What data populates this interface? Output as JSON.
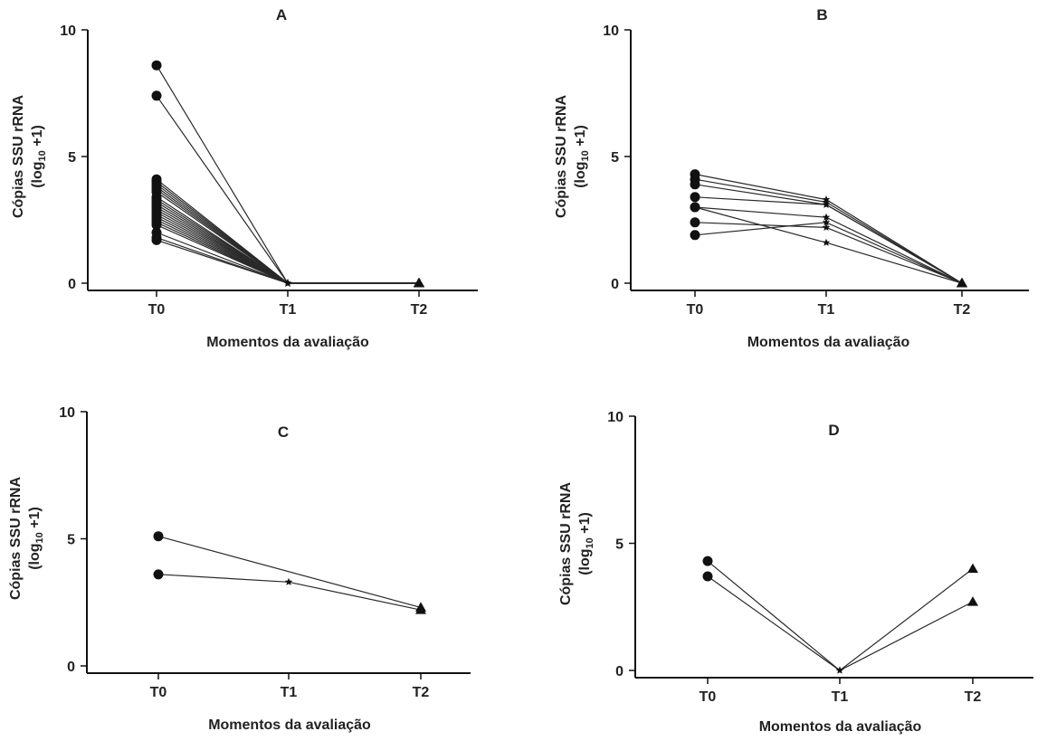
{
  "chart_data": [
    {
      "type": "line",
      "title": "A",
      "xlabel": "Momentos da avaliação",
      "ylabel": "Cópias SSU rRNA",
      "ylabel_line2": {
        "prefix": "(log",
        "sub": "10",
        "suffix": " +1)"
      },
      "categories": [
        "T0",
        "T1",
        "T2"
      ],
      "ylim": [
        0,
        10
      ],
      "yticks": [
        "0",
        "5",
        "10"
      ],
      "markers": [
        "circle",
        "star",
        "triangle"
      ],
      "series": [
        {
          "values": [
            8.6,
            0,
            0
          ]
        },
        {
          "values": [
            7.4,
            0,
            0
          ]
        },
        {
          "values": [
            4.1,
            0,
            0
          ]
        },
        {
          "values": [
            4.0,
            0,
            0
          ]
        },
        {
          "values": [
            3.9,
            0,
            0
          ]
        },
        {
          "values": [
            3.8,
            0,
            0
          ]
        },
        {
          "values": [
            3.7,
            0,
            0
          ]
        },
        {
          "values": [
            3.6,
            0,
            0
          ]
        },
        {
          "values": [
            3.4,
            0,
            0
          ]
        },
        {
          "values": [
            3.3,
            0,
            0
          ]
        },
        {
          "values": [
            3.2,
            0,
            0
          ]
        },
        {
          "values": [
            3.1,
            0,
            0
          ]
        },
        {
          "values": [
            3.0,
            0,
            0
          ]
        },
        {
          "values": [
            2.9,
            0,
            0
          ]
        },
        {
          "values": [
            2.8,
            0,
            0
          ]
        },
        {
          "values": [
            2.7,
            0,
            0
          ]
        },
        {
          "values": [
            2.6,
            0,
            0
          ]
        },
        {
          "values": [
            2.5,
            0,
            0
          ]
        },
        {
          "values": [
            2.4,
            0,
            0
          ]
        },
        {
          "values": [
            2.3,
            0,
            0
          ]
        },
        {
          "values": [
            2.0,
            0,
            0
          ]
        },
        {
          "values": [
            1.8,
            0,
            0
          ]
        },
        {
          "values": [
            1.7,
            0,
            0
          ]
        }
      ]
    },
    {
      "type": "line",
      "title": "B",
      "xlabel": "Momentos da avaliação",
      "ylabel": "Cópias SSU rRNA",
      "ylabel_line2": {
        "prefix": "(log",
        "sub": "10",
        "suffix": " +1)"
      },
      "categories": [
        "T0",
        "T1",
        "T2"
      ],
      "ylim": [
        0,
        10
      ],
      "yticks": [
        "0",
        "5",
        "10"
      ],
      "markers": [
        "circle",
        "star",
        "triangle"
      ],
      "series": [
        {
          "values": [
            4.3,
            3.3,
            0
          ]
        },
        {
          "values": [
            4.1,
            3.2,
            0
          ]
        },
        {
          "values": [
            3.9,
            3.1,
            0
          ]
        },
        {
          "values": [
            3.4,
            3.1,
            0
          ]
        },
        {
          "values": [
            3.0,
            2.6,
            0
          ]
        },
        {
          "values": [
            3.0,
            1.6,
            0
          ]
        },
        {
          "values": [
            2.4,
            2.2,
            0
          ]
        },
        {
          "values": [
            1.9,
            2.4,
            0
          ]
        }
      ]
    },
    {
      "type": "line",
      "title": "C",
      "xlabel": "Momentos da avaliação",
      "ylabel": "Cópias SSU rRNA",
      "ylabel_line2": {
        "prefix": "(log",
        "sub": "10",
        "suffix": " +1)"
      },
      "categories": [
        "T0",
        "T1",
        "T2"
      ],
      "ylim": [
        0,
        10
      ],
      "yticks": [
        "0",
        "5",
        "10"
      ],
      "markers": [
        "circle",
        "star",
        "triangle"
      ],
      "series": [
        {
          "values": [
            5.1,
            null,
            2.3
          ]
        },
        {
          "values": [
            3.6,
            3.3,
            2.2
          ]
        }
      ]
    },
    {
      "type": "line",
      "title": "D",
      "xlabel": "Momentos da avaliação",
      "ylabel": "Cópias SSU rRNA",
      "ylabel_line2": {
        "prefix": "(log",
        "sub": "10",
        "suffix": " +1)"
      },
      "categories": [
        "T0",
        "T1",
        "T2"
      ],
      "ylim": [
        0,
        10
      ],
      "yticks": [
        "0",
        "5",
        "10"
      ],
      "markers": [
        "circle",
        "star",
        "triangle"
      ],
      "series": [
        {
          "values": [
            4.3,
            0,
            4.0
          ]
        },
        {
          "values": [
            3.7,
            0,
            2.7
          ]
        }
      ]
    }
  ]
}
